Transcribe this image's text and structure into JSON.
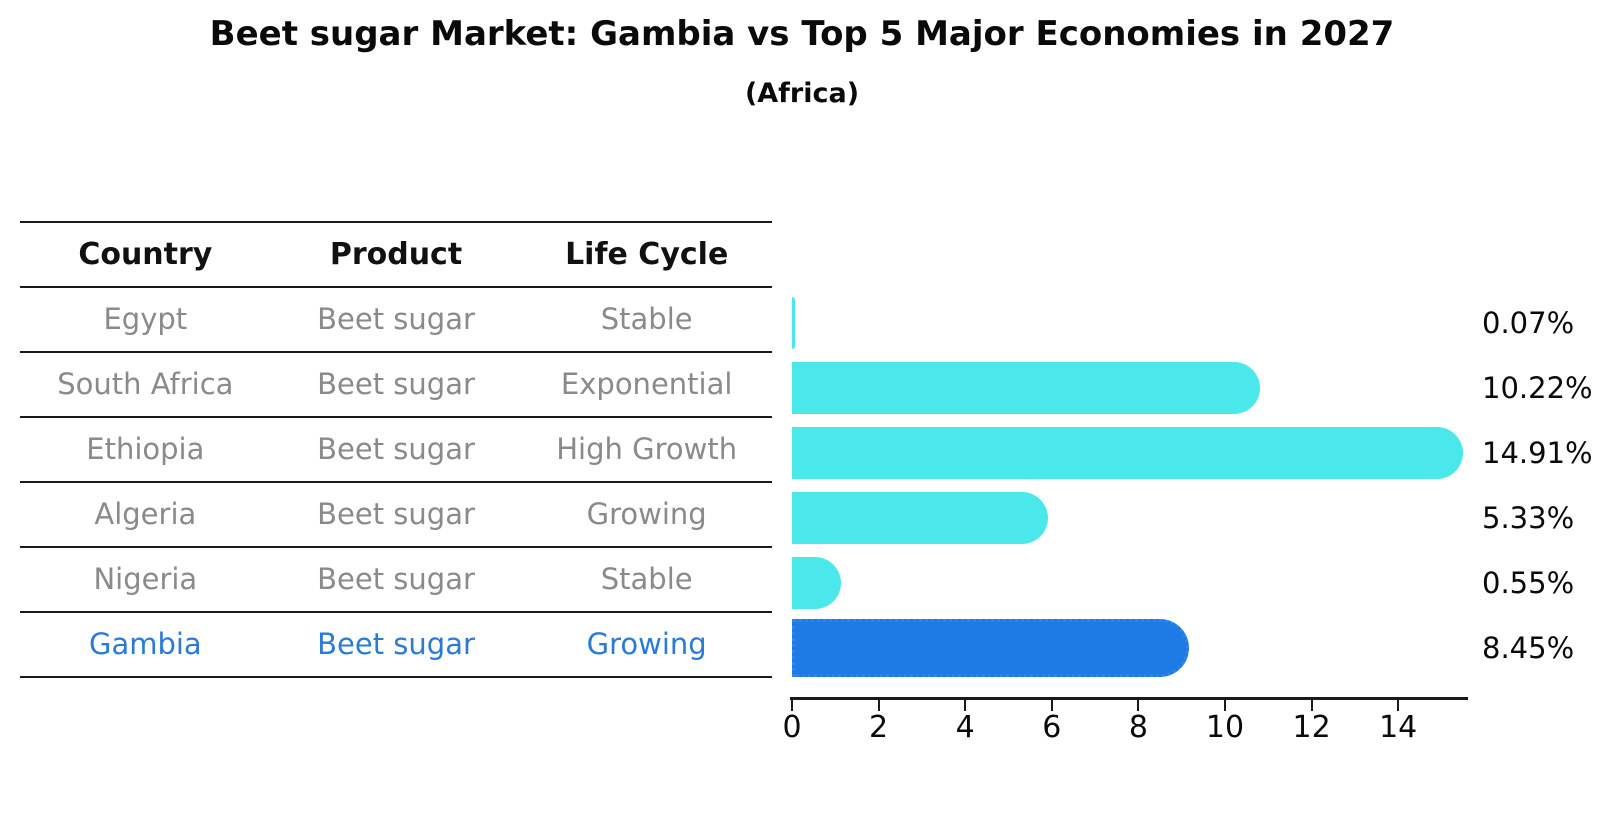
{
  "title": "Beet sugar Market: Gambia vs Top 5 Major Economies in 2027",
  "subtitle": "(Africa)",
  "table": {
    "headers": [
      "Country",
      "Product",
      "Life Cycle"
    ],
    "rows": [
      {
        "country": "Egypt",
        "product": "Beet sugar",
        "life_cycle": "Stable",
        "highlighted": false
      },
      {
        "country": "South Africa",
        "product": "Beet sugar",
        "life_cycle": "Exponential",
        "highlighted": false
      },
      {
        "country": "Ethiopia",
        "product": "Beet sugar",
        "life_cycle": "High Growth",
        "highlighted": false
      },
      {
        "country": "Algeria",
        "product": "Beet sugar",
        "life_cycle": "Growing",
        "highlighted": false
      },
      {
        "country": "Nigeria",
        "product": "Beet sugar",
        "life_cycle": "Stable",
        "highlighted": false
      },
      {
        "country": "Gambia",
        "product": "Beet sugar",
        "life_cycle": "Growing",
        "highlighted": true
      }
    ]
  },
  "chart_data": {
    "type": "bar",
    "orientation": "horizontal",
    "categories": [
      "Egypt",
      "South Africa",
      "Ethiopia",
      "Algeria",
      "Nigeria",
      "Gambia"
    ],
    "values": [
      0.07,
      10.22,
      14.91,
      5.33,
      0.55,
      8.45
    ],
    "value_labels": [
      "0.07%",
      "10.22%",
      "14.91%",
      "5.33%",
      "0.55%",
      "8.45%"
    ],
    "title": "Beet sugar Market: Gambia vs Top 5 Major Economies in 2027",
    "subtitle": "(Africa)",
    "xlabel": "",
    "ylabel": "",
    "xlim": [
      0,
      15.6
    ],
    "xticks": [
      0,
      2,
      4,
      6,
      8,
      10,
      12,
      14
    ],
    "grid": false,
    "legend": false,
    "highlight_index": 5,
    "colors": {
      "bar": "#4AE7EB",
      "highlight_bar": "#1E7AE4",
      "highlight_edge": "#2E86EC",
      "highlight_text": "#2B7BD4",
      "body_text": "#8a8a8a",
      "heading_text": "#111111",
      "axis": "#1a1a1a"
    }
  }
}
